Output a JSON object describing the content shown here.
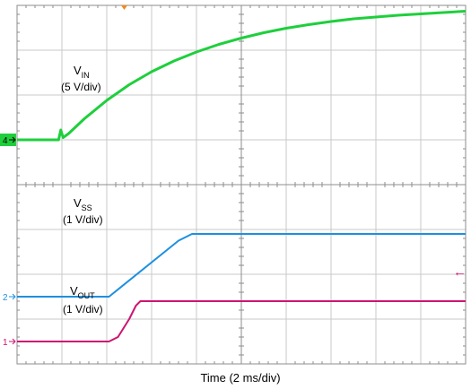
{
  "chart_data": {
    "type": "line",
    "xlabel": "Time (2 ms/div)",
    "x_units_per_div": 2,
    "x_divisions": 10,
    "y_divisions": 8,
    "trigger_level_mark": "←",
    "series": [
      {
        "name": "VIN",
        "label_main": "V",
        "label_sub": "IN",
        "scale_text": "(5 V/div)",
        "channel_marker": "4",
        "color": "#1ecf3c",
        "marker_color": "#1ecf3c",
        "x_ms": [
          0,
          0.8,
          1.85,
          1.95,
          2.05,
          2.3,
          3,
          4,
          5,
          6,
          7,
          8,
          9,
          10,
          11,
          12,
          13,
          14,
          15,
          16,
          17,
          18,
          19,
          20
        ],
        "y_div": [
          5.0,
          5.0,
          5.0,
          5.22,
          5.05,
          5.14,
          5.47,
          5.88,
          6.23,
          6.52,
          6.76,
          6.96,
          7.13,
          7.27,
          7.39,
          7.49,
          7.57,
          7.64,
          7.7,
          7.74,
          7.78,
          7.81,
          7.84,
          7.87
        ]
      },
      {
        "name": "VSS",
        "label_main": "V",
        "label_sub": "SS",
        "scale_text": "(1 V/div)",
        "channel_marker": "2",
        "color": "#1e90e0",
        "marker_color": "#1e90e0",
        "x_ms": [
          0,
          4.1,
          7.2,
          7.8,
          8.3,
          10,
          20
        ],
        "y_div": [
          1.5,
          1.5,
          2.75,
          2.9,
          2.9,
          2.9,
          2.9
        ]
      },
      {
        "name": "VOUT",
        "label_main": "V",
        "label_sub": "OUT",
        "scale_text": "(1 V/div)",
        "channel_marker": "1",
        "color": "#cc1570",
        "marker_color": "#cc1570",
        "x_ms": [
          0,
          4.1,
          4.5,
          5.0,
          5.3,
          5.5,
          6.0,
          20
        ],
        "y_div": [
          0.5,
          0.5,
          0.6,
          1.0,
          1.3,
          1.4,
          1.4,
          1.4
        ]
      }
    ]
  }
}
